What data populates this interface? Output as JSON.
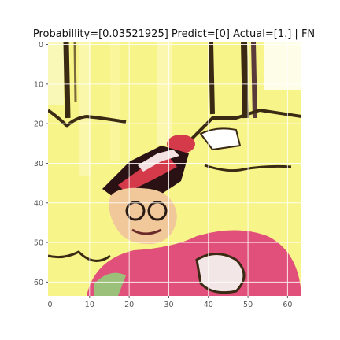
{
  "chart_data": {
    "type": "heatmap",
    "title": "Probabillity=[0.03521925] Predict=[0] Actual=[1.] | FN",
    "xlim": [
      0,
      63
    ],
    "ylim": [
      63,
      0
    ],
    "image_size": [
      64,
      64
    ],
    "x_ticks": [
      0,
      10,
      20,
      30,
      40,
      50,
      60
    ],
    "y_ticks": [
      0,
      10,
      20,
      30,
      40,
      50,
      60
    ],
    "x_tick_labels": [
      "0",
      "10",
      "20",
      "30",
      "40",
      "50",
      "60"
    ],
    "y_tick_labels": [
      "0",
      "10",
      "20",
      "30",
      "40",
      "50",
      "60"
    ],
    "grid": true,
    "image_content": "cartoon character with red-and-white striped hat and glasses on yellow background",
    "colors": {
      "background": "#f7f48a",
      "hat_red": "#d43a4a",
      "hat_dark": "#2a1214",
      "skin": "#f1c89a",
      "shirt_red": "#e0507a",
      "outline": "#3a2a14",
      "grid": "#ffffff",
      "tick": "#555555"
    }
  }
}
